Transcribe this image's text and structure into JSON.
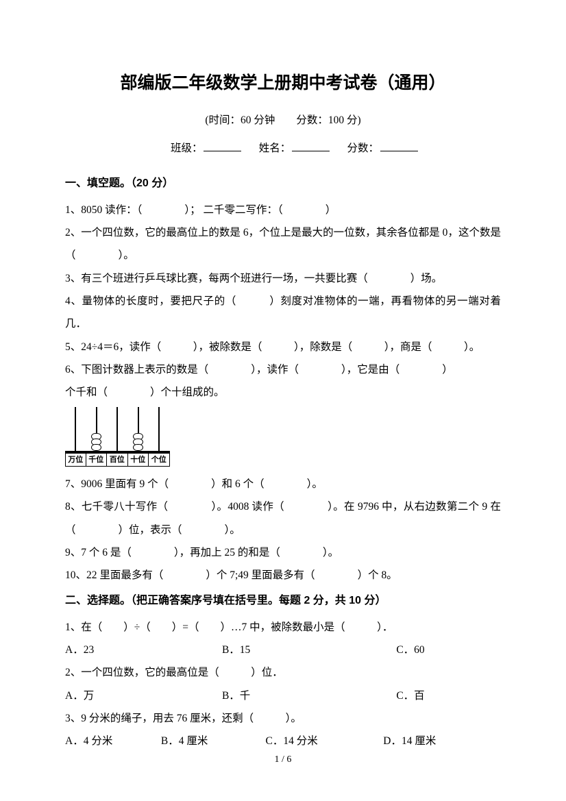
{
  "title": "部编版二年级数学上册期中考试卷（通用）",
  "subtitle": "(时间：60 分钟　　分数：100 分)",
  "info": {
    "class": "班级：",
    "name": "姓名：",
    "score": "分数："
  },
  "s1": {
    "header": "一、填空题。（20 分）",
    "q1": "1、8050 读作：（　　　　）； 二千零二写作：（　　　　）",
    "q2": "2、一个四位数，它的最高位上的数是 6，个位上是最大的一位数，其余各位都是 0，这个数是（　　　　）。",
    "q3": "3、有三个班进行乒乓球比赛，每两个班进行一场，一共要比赛（　　　　）场。",
    "q4": "4、量物体的长度时，要把尺子的（　　　）刻度对准物体的一端，再看物体的另一端对着几．",
    "q5": "5、24÷4＝6，读作（　　　），被除数是（　　　），除数是（　　　），商是（　　　）。",
    "q6a": "6、下图计数器上表示的数是（　　　　），读作（　　　　），它是由（　　　　）",
    "q6b": "个千和（　　　　）个十组成的。",
    "counter_labels": [
      "万位",
      "千位",
      "百位",
      "十位",
      "个位"
    ],
    "q7": "7、9006 里面有 9 个（　　　　）和 6 个（　　　　）。",
    "q8": "8、七千零八十写作（　　　　）。4008 读作（　　　　）。在 9796 中，从右边数第二个 9 在（　　　　）位，表示（　　　　）。",
    "q9": "9、7 个 6 是（　　　　），再加上 25 的和是（　　　　）。",
    "q10": "10、22 里面最多有（　　　　）个 7;49 里面最多有（　　　　）个 8。"
  },
  "s2": {
    "header": "二、选择题。（把正确答案序号填在括号里。每题 2 分，共 10 分）",
    "q1": "1、在（　　）÷（　　）=（　　）…7 中，被除数最小是（　　　）．",
    "q1_opts": [
      "A．23",
      "B．15",
      "C．60"
    ],
    "q2": "2、一个四位数，它的最高位是（　　　）位．",
    "q2_opts": [
      "A．万",
      "B．千",
      "C．百"
    ],
    "q3": "3、9 分米的绳子，用去 76 厘米，还剩（　　　）。",
    "q3_opts": [
      "A．4 分米",
      "B．4 厘米",
      "C．14 分米",
      "D．14 厘米"
    ]
  },
  "footer": "1 / 6"
}
